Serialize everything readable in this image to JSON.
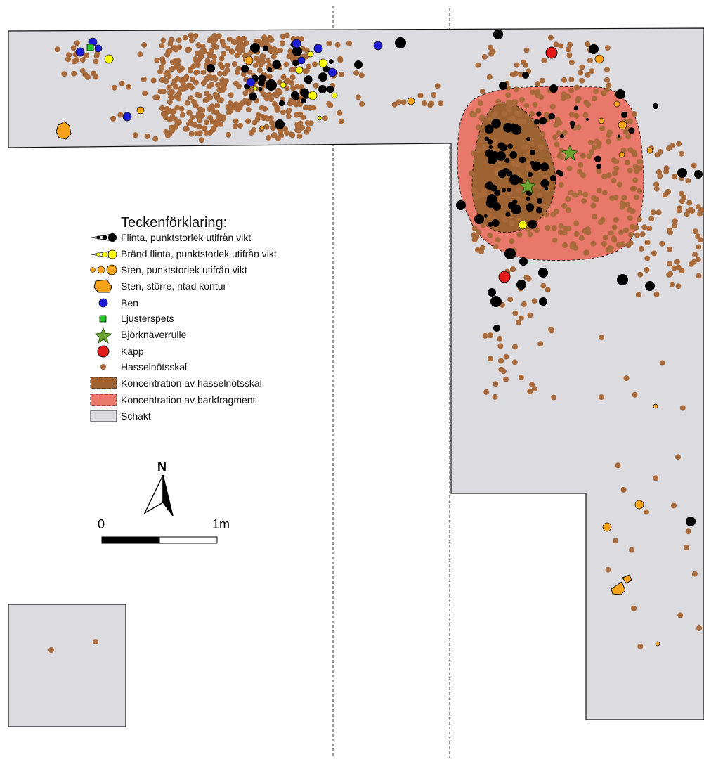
{
  "legend": {
    "title": "Teckenförklaring:",
    "items": [
      {
        "key": "flint",
        "label": "Flinta, punktstorlek utifrån vikt",
        "color": "#000000"
      },
      {
        "key": "burnt_flint",
        "label": "Bränd flinta, punktstorlek utifrån vikt",
        "color": "#ffff00"
      },
      {
        "key": "stone",
        "label": "Sten, punktstorlek utifrån vikt",
        "color": "#f7a21b"
      },
      {
        "key": "large_stone",
        "label": "Sten, större, ritad kontur",
        "color": "#f7a21b"
      },
      {
        "key": "bone",
        "label": "Ben",
        "color": "#1d1dd6"
      },
      {
        "key": "ljusterspets",
        "label": "Ljusterspets",
        "color": "#22cc22"
      },
      {
        "key": "birch_bark",
        "label": "Björknäverrulle",
        "color": "#6aa22e"
      },
      {
        "key": "stick",
        "label": "Käpp",
        "color": "#e31a1a"
      },
      {
        "key": "hazelnut",
        "label": "Hasselnötsskal",
        "color": "#a86a3a"
      },
      {
        "key": "hazel_conc",
        "label": "Koncentration av hasselnötsskal",
        "color": "#9c6232"
      },
      {
        "key": "bark_conc",
        "label": "Koncentration av barkfragment",
        "color": "#e8786a"
      },
      {
        "key": "trench",
        "label": "Schakt",
        "color": "#dcdce0"
      }
    ]
  },
  "north": {
    "label": "N"
  },
  "scale": {
    "start_label": "0",
    "end_label": "1m"
  }
}
